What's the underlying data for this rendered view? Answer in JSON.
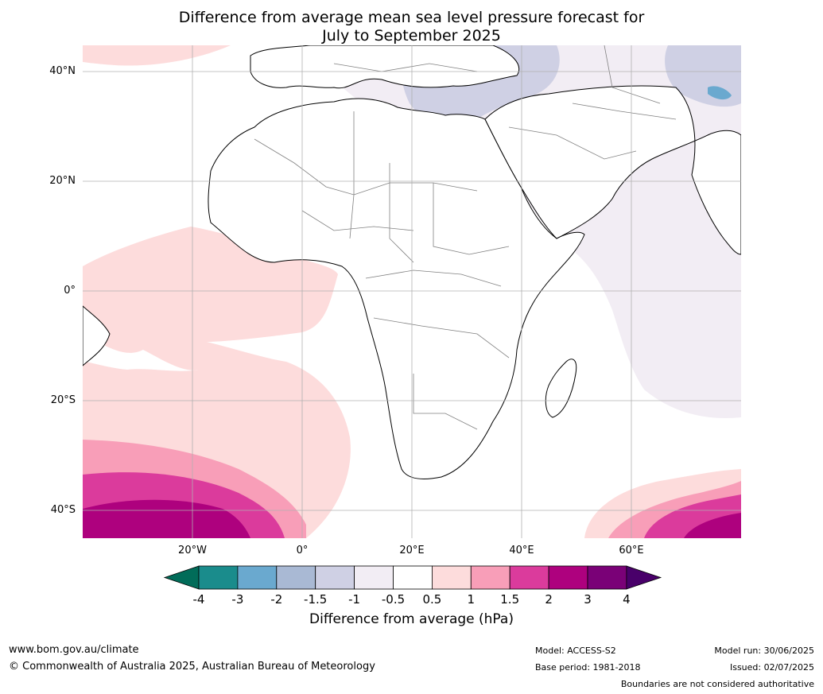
{
  "title_line1": "Difference from average mean sea level pressure forecast for",
  "title_line2": "July to September 2025",
  "map": {
    "lat_labels": [
      "40°N",
      "20°N",
      "0°",
      "20°S",
      "40°S"
    ],
    "lat_values": [
      40,
      20,
      0,
      -20,
      -40
    ],
    "lon_labels": [
      "20°W",
      "0°",
      "20°E",
      "40°E",
      "60°E"
    ],
    "lon_values": [
      -20,
      0,
      20,
      40,
      60
    ],
    "extent": {
      "lon_min": -40,
      "lon_max": 80,
      "lat_min": -45,
      "lat_max": 45
    },
    "gridlines": true,
    "land_color": "#ffffff",
    "coast_color": "#000000",
    "border_color": "#808080"
  },
  "colorbar": {
    "tick_labels": [
      "-4",
      "-3",
      "-2",
      "-1.5",
      "-1",
      "-0.5",
      "0.5",
      "1",
      "1.5",
      "2",
      "3",
      "4"
    ],
    "colors": [
      "#1a8c8c",
      "#6aa9cf",
      "#a9b9d4",
      "#cfd0e4",
      "#f2edf4",
      "#ffffff",
      "#fddcdc",
      "#f89eb8",
      "#db3b9c",
      "#ae017e",
      "#7a0177"
    ],
    "under_color": "#016c59",
    "over_color": "#49006a",
    "label": "Difference from average (hPa)"
  },
  "footer": {
    "website": "www.bom.gov.au/climate",
    "copyright": "© Commonwealth of Australia 2025, Australian Bureau of Meteorology",
    "model": "Model: ACCESS-S2",
    "base_period": "Base period: 1981-2018",
    "model_run": "Model run: 30/06/2025",
    "issued": "Issued: 02/07/2025",
    "disclaimer": "Boundaries are not considered authoritative"
  }
}
